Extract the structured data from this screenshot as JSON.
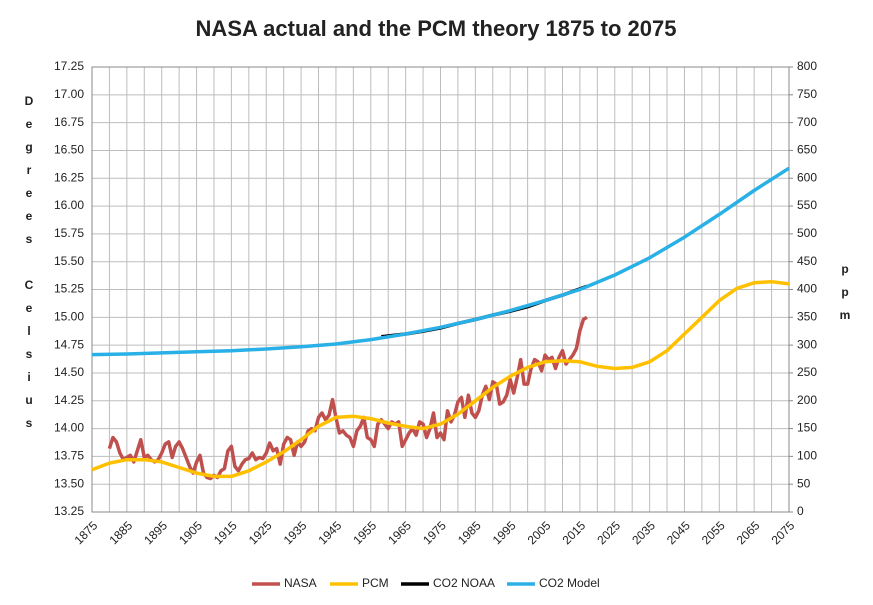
{
  "chart_data": {
    "type": "line",
    "title": "NASA actual and the PCM theory 1875 to 2075",
    "y_label": "Degrees Celsius",
    "y2_label": "ppm",
    "grid": true,
    "legend": "bottom",
    "xlim": [
      1875,
      2075
    ],
    "xticks": [
      1875,
      1885,
      1895,
      1905,
      1915,
      1925,
      1935,
      1945,
      1955,
      1965,
      1975,
      1985,
      1995,
      2005,
      2015,
      2025,
      2035,
      2045,
      2055,
      2065,
      2075
    ],
    "ylim": [
      13.25,
      17.25
    ],
    "yticks": [
      13.25,
      {
        "value": 13.5,
        "label": "13.50"
      },
      13.75,
      {
        "value": 14,
        "label": "14.00"
      },
      14.25,
      {
        "value": 14.5,
        "label": "14.50"
      },
      14.75,
      {
        "value": 15,
        "label": "15.00"
      },
      15.25,
      {
        "value": 15.5,
        "label": "15.50"
      },
      15.75,
      {
        "value": 16,
        "label": "16.00"
      },
      16.25,
      {
        "value": 16.5,
        "label": "16.50"
      },
      16.75,
      {
        "value": 17,
        "label": "17.00"
      },
      17.25
    ],
    "y2lim": [
      0,
      800
    ],
    "y2ticks": [
      0,
      50,
      100,
      150,
      200,
      250,
      300,
      350,
      400,
      450,
      500,
      550,
      600,
      650,
      700,
      750,
      800
    ],
    "series": [
      {
        "name": "NASA",
        "color": "#c0504d",
        "x": [
          1880,
          1881,
          1882,
          1883,
          1884,
          1885,
          1886,
          1887,
          1888,
          1889,
          1890,
          1891,
          1892,
          1893,
          1894,
          1895,
          1896,
          1897,
          1898,
          1899,
          1900,
          1901,
          1902,
          1903,
          1904,
          1905,
          1906,
          1907,
          1908,
          1909,
          1910,
          1911,
          1912,
          1913,
          1914,
          1915,
          1916,
          1917,
          1918,
          1919,
          1920,
          1921,
          1922,
          1923,
          1924,
          1925,
          1926,
          1927,
          1928,
          1929,
          1930,
          1931,
          1932,
          1933,
          1934,
          1935,
          1936,
          1937,
          1938,
          1939,
          1940,
          1941,
          1942,
          1943,
          1944,
          1945,
          1946,
          1947,
          1948,
          1949,
          1950,
          1951,
          1952,
          1953,
          1954,
          1955,
          1956,
          1957,
          1958,
          1959,
          1960,
          1961,
          1962,
          1963,
          1964,
          1965,
          1966,
          1967,
          1968,
          1969,
          1970,
          1971,
          1972,
          1973,
          1974,
          1975,
          1976,
          1977,
          1978,
          1979,
          1980,
          1981,
          1982,
          1983,
          1984,
          1985,
          1986,
          1987,
          1988,
          1989,
          1990,
          1991,
          1992,
          1993,
          1994,
          1995,
          1996,
          1997,
          1998,
          1999,
          2000,
          2001,
          2002,
          2003,
          2004,
          2005,
          2006,
          2007,
          2008,
          2009,
          2010,
          2011,
          2012,
          2013,
          2014,
          2015,
          2016,
          2017
        ],
        "values": [
          13.82,
          13.92,
          13.88,
          13.78,
          13.72,
          13.74,
          13.76,
          13.7,
          13.8,
          13.9,
          13.74,
          13.76,
          13.72,
          13.7,
          13.72,
          13.78,
          13.86,
          13.88,
          13.74,
          13.84,
          13.88,
          13.82,
          13.74,
          13.66,
          13.6,
          13.7,
          13.76,
          13.6,
          13.56,
          13.55,
          13.58,
          13.56,
          13.62,
          13.64,
          13.8,
          13.84,
          13.66,
          13.62,
          13.68,
          13.72,
          13.73,
          13.78,
          13.72,
          13.74,
          13.73,
          13.78,
          13.87,
          13.8,
          13.82,
          13.68,
          13.86,
          13.92,
          13.9,
          13.76,
          13.88,
          13.84,
          13.88,
          13.98,
          14.0,
          13.98,
          14.1,
          14.14,
          14.08,
          14.12,
          14.26,
          14.1,
          13.96,
          13.98,
          13.94,
          13.92,
          13.84,
          13.98,
          14.02,
          14.1,
          13.92,
          13.9,
          13.84,
          14.04,
          14.08,
          14.04,
          14.0,
          14.06,
          14.04,
          14.06,
          13.84,
          13.9,
          13.96,
          14.0,
          13.94,
          14.06,
          14.04,
          13.92,
          14.0,
          14.14,
          13.92,
          13.96,
          13.9,
          14.16,
          14.06,
          14.12,
          14.24,
          14.28,
          14.1,
          14.3,
          14.14,
          14.1,
          14.16,
          14.3,
          14.38,
          14.26,
          14.42,
          14.4,
          14.22,
          14.24,
          14.3,
          14.44,
          14.32,
          14.46,
          14.62,
          14.4,
          14.4,
          14.54,
          14.62,
          14.6,
          14.52,
          14.66,
          14.62,
          14.64,
          14.54,
          14.64,
          14.7,
          14.58,
          14.62,
          14.66,
          14.72,
          14.88,
          14.98,
          15.0
        ]
      },
      {
        "name": "PCM",
        "color": "#ffc000",
        "x": [
          1875,
          1880,
          1885,
          1890,
          1895,
          1900,
          1905,
          1910,
          1915,
          1920,
          1925,
          1930,
          1935,
          1940,
          1945,
          1950,
          1955,
          1960,
          1965,
          1970,
          1975,
          1980,
          1985,
          1990,
          1995,
          2000,
          2005,
          2010,
          2015,
          2020,
          2025,
          2030,
          2035,
          2040,
          2045,
          2050,
          2055,
          2060,
          2065,
          2070,
          2075
        ],
        "values": [
          13.63,
          13.69,
          13.72,
          13.72,
          13.7,
          13.65,
          13.6,
          13.57,
          13.57,
          13.62,
          13.7,
          13.79,
          13.9,
          14.02,
          14.1,
          14.11,
          14.09,
          14.05,
          14.02,
          14.0,
          14.04,
          14.13,
          14.25,
          14.37,
          14.47,
          14.55,
          14.6,
          14.61,
          14.6,
          14.56,
          14.54,
          14.55,
          14.6,
          14.7,
          14.85,
          15.0,
          15.15,
          15.26,
          15.31,
          15.32,
          15.3
        ]
      },
      {
        "name": "CO2 NOAA",
        "color": "#000000",
        "axis": "y2",
        "x": [
          1958,
          1965,
          1970,
          1975,
          1980,
          1985,
          1990,
          1995,
          2000,
          2005,
          2010,
          2015,
          2017
        ],
        "values": [
          315,
          320,
          325,
          331,
          339,
          346,
          354,
          361,
          369,
          380,
          390,
          401,
          406
        ]
      },
      {
        "name": "CO2 Model",
        "color": "#29b0e6",
        "axis": "y2",
        "x": [
          1875,
          1885,
          1895,
          1905,
          1915,
          1925,
          1935,
          1945,
          1955,
          1965,
          1975,
          1985,
          1995,
          2005,
          2015,
          2025,
          2035,
          2045,
          2055,
          2065,
          2075
        ],
        "values": [
          283,
          284,
          286,
          288,
          290,
          293,
          297,
          302,
          310,
          320,
          332,
          346,
          362,
          380,
          400,
          426,
          457,
          494,
          535,
          578,
          618
        ]
      }
    ]
  }
}
